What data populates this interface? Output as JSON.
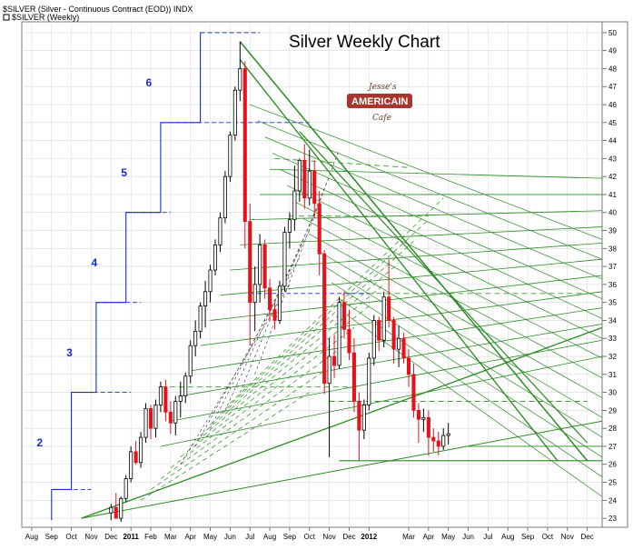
{
  "header": {
    "symbol_line": "$SILVER (Silver - Continuous Contract (EOD)) INDX",
    "legend_line": "$SILVER (Weekly)"
  },
  "chart_data": {
    "type": "candlestick",
    "title": "Silver Weekly Chart",
    "ylim": [
      22.5,
      50.6
    ],
    "y_ticks": [
      "23",
      "24",
      "25",
      "26",
      "27",
      "28",
      "29",
      "30",
      "31",
      "32",
      "33",
      "34",
      "35",
      "36",
      "37",
      "38",
      "39",
      "40",
      "41",
      "42",
      "43",
      "44",
      "45",
      "46",
      "47",
      "48",
      "49",
      "50"
    ],
    "x_ticks": [
      {
        "label": "Aug",
        "week": -16
      },
      {
        "label": "Sep",
        "week": -12
      },
      {
        "label": "Oct",
        "week": -8
      },
      {
        "label": "Nov",
        "week": -4
      },
      {
        "label": "Dec",
        "week": 0
      },
      {
        "label": "2011",
        "week": 4,
        "bold": true
      },
      {
        "label": "Feb",
        "week": 8
      },
      {
        "label": "Mar",
        "week": 12
      },
      {
        "label": "Apr",
        "week": 16
      },
      {
        "label": "May",
        "week": 20
      },
      {
        "label": "Jun",
        "week": 24
      },
      {
        "label": "Jul",
        "week": 28
      },
      {
        "label": "Aug",
        "week": 32
      },
      {
        "label": "Sep",
        "week": 36
      },
      {
        "label": "Oct",
        "week": 40
      },
      {
        "label": "Nov",
        "week": 44
      },
      {
        "label": "Dec",
        "week": 48
      },
      {
        "label": "2012",
        "week": 52,
        "bold": true
      },
      {
        "label": "Mar",
        "week": 60
      },
      {
        "label": "Apr",
        "week": 64
      },
      {
        "label": "May",
        "week": 68
      },
      {
        "label": "Jun",
        "week": 72
      },
      {
        "label": "Jul",
        "week": 76
      },
      {
        "label": "Aug",
        "week": 80
      },
      {
        "label": "Sep",
        "week": 84
      },
      {
        "label": "Oct",
        "week": 88
      },
      {
        "label": "Nov",
        "week": 92
      },
      {
        "label": "Dec",
        "week": 96
      }
    ],
    "x_range_weeks": [
      -18,
      99
    ],
    "candles": [
      [
        23.3,
        23.8,
        22.9,
        23.6
      ],
      [
        23.6,
        24.4,
        23.2,
        23.0
      ],
      [
        23.0,
        24.2,
        22.8,
        24.1
      ],
      [
        24.1,
        25.4,
        23.9,
        25.2
      ],
      [
        25.2,
        27.0,
        25.0,
        26.7
      ],
      [
        26.7,
        27.3,
        26.0,
        26.1
      ],
      [
        26.1,
        27.8,
        25.8,
        27.5
      ],
      [
        27.5,
        29.4,
        27.2,
        29.1
      ],
      [
        29.1,
        29.3,
        27.4,
        28.0
      ],
      [
        28.0,
        29.6,
        27.5,
        29.3
      ],
      [
        29.3,
        30.6,
        28.9,
        30.3
      ],
      [
        30.3,
        30.7,
        28.4,
        28.9
      ],
      [
        28.9,
        29.5,
        27.7,
        28.3
      ],
      [
        28.3,
        29.8,
        27.6,
        29.5
      ],
      [
        29.5,
        30.6,
        28.6,
        29.8
      ],
      [
        29.8,
        31.1,
        29.4,
        30.9
      ],
      [
        30.9,
        32.9,
        30.5,
        32.6
      ],
      [
        32.6,
        34.0,
        32.0,
        33.4
      ],
      [
        33.4,
        35.0,
        33.0,
        34.8
      ],
      [
        34.8,
        36.2,
        33.6,
        35.6
      ],
      [
        35.6,
        37.1,
        35.0,
        36.8
      ],
      [
        36.8,
        38.5,
        36.5,
        38.2
      ],
      [
        38.2,
        40.0,
        37.8,
        39.7
      ],
      [
        39.7,
        42.3,
        39.4,
        42.0
      ],
      [
        42.0,
        44.5,
        41.7,
        44.3
      ],
      [
        44.3,
        47.0,
        44.0,
        46.8
      ],
      [
        46.8,
        49.5,
        46.2,
        48.0
      ],
      [
        48.0,
        48.4,
        38.0,
        39.5
      ],
      [
        39.5,
        40.5,
        32.6,
        35.0
      ],
      [
        35.0,
        37.0,
        33.4,
        36.0
      ],
      [
        36.0,
        38.8,
        35.0,
        38.2
      ],
      [
        38.2,
        38.5,
        35.2,
        35.8
      ],
      [
        35.8,
        36.3,
        34.0,
        34.6
      ],
      [
        34.6,
        35.0,
        33.5,
        34.0
      ],
      [
        34.0,
        36.2,
        33.8,
        35.9
      ],
      [
        35.9,
        39.2,
        35.6,
        38.9
      ],
      [
        38.9,
        40.0,
        38.0,
        39.6
      ],
      [
        39.6,
        42.6,
        39.0,
        41.2
      ],
      [
        41.2,
        43.0,
        40.6,
        42.9
      ],
      [
        42.9,
        43.8,
        40.2,
        40.8
      ],
      [
        40.8,
        43.5,
        40.4,
        42.3
      ],
      [
        42.3,
        42.9,
        39.7,
        40.5
      ],
      [
        40.5,
        41.2,
        36.5,
        37.7
      ],
      [
        37.7,
        37.9,
        29.9,
        30.5
      ],
      [
        30.5,
        33.0,
        26.4,
        32.0
      ],
      [
        32.0,
        33.2,
        30.8,
        31.5
      ],
      [
        31.5,
        35.3,
        31.3,
        35.0
      ],
      [
        35.0,
        35.6,
        33.0,
        33.5
      ],
      [
        33.5,
        34.6,
        31.8,
        32.2
      ],
      [
        32.2,
        33.0,
        28.9,
        29.5
      ],
      [
        29.5,
        30.0,
        26.2,
        27.9
      ],
      [
        27.9,
        29.6,
        27.4,
        29.3
      ],
      [
        29.3,
        32.2,
        29.0,
        31.9
      ],
      [
        31.9,
        34.3,
        31.5,
        34.0
      ],
      [
        34.0,
        34.2,
        32.3,
        32.9
      ],
      [
        32.9,
        35.6,
        32.5,
        35.3
      ],
      [
        35.3,
        37.4,
        33.6,
        34.0
      ],
      [
        34.0,
        34.2,
        31.6,
        32.4
      ],
      [
        32.4,
        33.7,
        31.4,
        33.0
      ],
      [
        33.0,
        33.3,
        31.6,
        31.9
      ],
      [
        31.9,
        32.4,
        30.3,
        31.0
      ],
      [
        31.0,
        31.6,
        28.6,
        29.0
      ],
      [
        29.0,
        29.4,
        27.2,
        28.5
      ],
      [
        28.5,
        29.1,
        27.8,
        28.6
      ],
      [
        28.6,
        29.0,
        26.5,
        27.5
      ],
      [
        27.5,
        28.0,
        26.7,
        27.3
      ],
      [
        27.3,
        27.8,
        26.5,
        27.0
      ],
      [
        27.0,
        28.0,
        26.8,
        27.6
      ],
      [
        27.6,
        28.3,
        27.1,
        27.7
      ]
    ],
    "candle_start_week": 0,
    "wave_labels": [
      "2",
      "3",
      "4",
      "5",
      "6"
    ],
    "logo": {
      "top": "Jesse's",
      "mid": "AMERICAIN",
      "bot": "Cafe"
    },
    "colors": {
      "up": "#ffffff",
      "down": "#e8111a",
      "outline": "#000000",
      "green_line": "#2a8a22",
      "dashed_green": "#3a9a33",
      "blue_step": "#1c2bd0",
      "grid": "#d8d8d8"
    }
  }
}
